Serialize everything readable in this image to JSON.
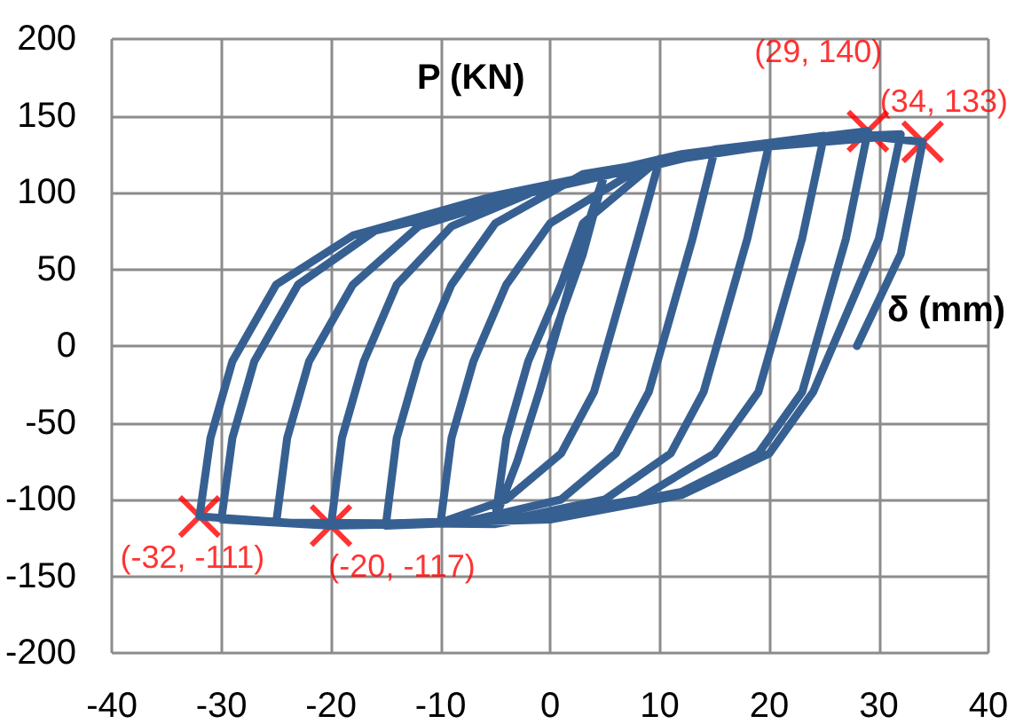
{
  "chart_data": {
    "type": "line",
    "xlabel": "δ (mm)",
    "ylabel": "P (KN)",
    "xlim": [
      -40,
      40
    ],
    "xticks": [
      -40,
      -30,
      -20,
      -10,
      0,
      10,
      20,
      30,
      40
    ],
    "ylim": [
      -200,
      200
    ],
    "yticks": [
      -200,
      -150,
      -100,
      -50,
      0,
      50,
      100,
      150,
      200
    ],
    "grid": true,
    "marker": "none",
    "line_style": "solid",
    "series": [
      {
        "color": "#376092",
        "x": [
          0,
          3,
          5,
          3,
          1,
          -1,
          -3,
          -5,
          -4,
          -2,
          1,
          3,
          10,
          8,
          6,
          4,
          1,
          -4,
          -10,
          -9,
          -7,
          -4,
          0,
          8,
          15,
          13,
          11,
          9,
          6,
          1,
          -8,
          -15,
          -14,
          -12,
          -9,
          -5,
          3,
          20,
          18,
          16,
          14,
          11,
          5,
          -5,
          -20,
          -19,
          -17,
          -14,
          -9,
          0,
          12,
          25,
          23,
          21,
          19,
          15,
          8,
          -5,
          -25,
          -24,
          -22,
          -18,
          -12,
          0,
          15,
          29,
          27,
          25,
          23,
          19,
          12,
          0,
          -20,
          -32,
          -31,
          -29,
          -25,
          -18,
          -5,
          10,
          25,
          32,
          30,
          27,
          24,
          20,
          12,
          0,
          -20,
          -30,
          -29,
          -27,
          -23,
          -16,
          0,
          15,
          30,
          34,
          32,
          30,
          28
        ],
        "values": [
          0,
          60,
          113,
          70,
          20,
          -30,
          -75,
          -112,
          -60,
          -10,
          40,
          80,
          122,
          70,
          20,
          -30,
          -70,
          -100,
          -115,
          -60,
          -10,
          40,
          80,
          115,
          127,
          70,
          20,
          -30,
          -70,
          -100,
          -115,
          -117,
          -60,
          -10,
          40,
          80,
          112,
          132,
          70,
          20,
          -30,
          -70,
          -100,
          -115,
          -117,
          -60,
          -10,
          40,
          78,
          105,
          125,
          137,
          70,
          20,
          -30,
          -70,
          -100,
          -116,
          -115,
          -60,
          -10,
          40,
          78,
          105,
          128,
          140,
          70,
          20,
          -30,
          -70,
          -95,
          -112,
          -117,
          -111,
          -60,
          -10,
          40,
          72,
          98,
          120,
          136,
          138,
          70,
          20,
          -30,
          -70,
          -97,
          -113,
          -117,
          -113,
          -60,
          -10,
          40,
          75,
          103,
          127,
          136,
          133,
          60,
          30,
          0
        ]
      },
      {
        "type": "scatter",
        "color": "#ff0000",
        "marker": "cross",
        "x": [
          29,
          34,
          -32,
          -20
        ],
        "values": [
          140,
          133,
          -111,
          -117
        ]
      }
    ],
    "annotations": [
      {
        "text": "(29, 140)",
        "x": 29,
        "y": 140
      },
      {
        "text": "(34, 133)",
        "x": 34,
        "y": 133
      },
      {
        "text": "(-32, -111)",
        "x": -32,
        "y": -111
      },
      {
        "text": "(-20, -117)",
        "x": -20,
        "y": -117
      }
    ]
  }
}
